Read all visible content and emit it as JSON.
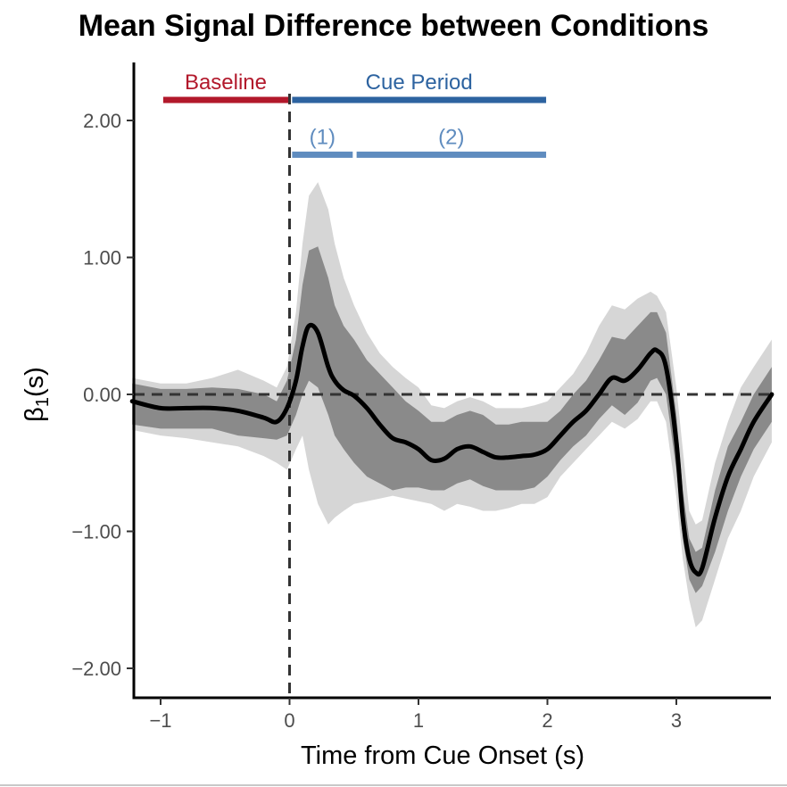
{
  "chart_data": {
    "type": "line",
    "title": "Mean Signal Difference between Conditions",
    "xlabel": "Time from Cue Onset (s)",
    "ylabel_main": "β",
    "ylabel_sub": "1",
    "ylabel_tail": "(s)",
    "xlim": [
      -1.22,
      3.74
    ],
    "ylim": [
      -2.2,
      2.4
    ],
    "x_ticks": [
      -1,
      0,
      1,
      2,
      3
    ],
    "x_tick_labels": [
      "−1",
      "0",
      "1",
      "2",
      "3"
    ],
    "y_ticks": [
      2,
      1,
      0,
      -1,
      -2
    ],
    "y_tick_labels": [
      "2.00",
      "1.00",
      "0.00",
      "−1.00",
      "−2.00"
    ],
    "reference_lines": [
      {
        "axis": "y",
        "value": 0,
        "style": "dashed"
      },
      {
        "axis": "x",
        "value": 0,
        "style": "dashed"
      }
    ],
    "annotations": [
      {
        "label": "Baseline",
        "x_start": -0.98,
        "x_end": -0.01,
        "y": 2.15,
        "label_y": 2.28,
        "color": "#b2182b"
      },
      {
        "label": "Cue Period",
        "x_start": 0.02,
        "x_end": 1.99,
        "y": 2.15,
        "label_y": 2.28,
        "color": "#2d63a0"
      },
      {
        "label": "(1)",
        "x_start": 0.02,
        "x_end": 0.49,
        "y": 1.75,
        "label_y": 1.88,
        "color": "#5f8cbf"
      },
      {
        "label": "(2)",
        "x_start": 0.52,
        "x_end": 1.99,
        "y": 1.75,
        "label_y": 1.88,
        "color": "#5f8cbf"
      }
    ],
    "series": [
      {
        "x": [
          -1.22,
          -1.0,
          -0.8,
          -0.6,
          -0.4,
          -0.2,
          -0.1,
          -0.02,
          0.05,
          0.1,
          0.15,
          0.22,
          0.3,
          0.35,
          0.42,
          0.5,
          0.6,
          0.7,
          0.8,
          0.9,
          1.0,
          1.1,
          1.2,
          1.3,
          1.4,
          1.5,
          1.6,
          1.7,
          1.8,
          1.9,
          2.0,
          2.1,
          2.2,
          2.3,
          2.4,
          2.5,
          2.6,
          2.7,
          2.8,
          2.85,
          2.92,
          3.0,
          3.05,
          3.1,
          3.15,
          3.2,
          3.3,
          3.4,
          3.5,
          3.6,
          3.74
        ],
        "y": [
          -0.05,
          -0.1,
          -0.1,
          -0.1,
          -0.12,
          -0.17,
          -0.2,
          -0.1,
          0.1,
          0.35,
          0.5,
          0.45,
          0.2,
          0.1,
          0.03,
          -0.01,
          -0.1,
          -0.22,
          -0.32,
          -0.35,
          -0.4,
          -0.48,
          -0.47,
          -0.4,
          -0.38,
          -0.42,
          -0.46,
          -0.46,
          -0.45,
          -0.44,
          -0.4,
          -0.3,
          -0.2,
          -0.12,
          0.0,
          0.12,
          0.1,
          0.18,
          0.3,
          0.32,
          0.2,
          -0.35,
          -0.9,
          -1.2,
          -1.3,
          -1.27,
          -0.9,
          -0.6,
          -0.4,
          -0.2,
          0.0
        ],
        "inner_lower": [
          -0.22,
          -0.25,
          -0.25,
          -0.25,
          -0.3,
          -0.32,
          -0.33,
          -0.3,
          -0.15,
          0.0,
          0.1,
          0.05,
          -0.15,
          -0.3,
          -0.4,
          -0.5,
          -0.6,
          -0.65,
          -0.7,
          -0.68,
          -0.68,
          -0.7,
          -0.7,
          -0.65,
          -0.62,
          -0.67,
          -0.7,
          -0.7,
          -0.7,
          -0.68,
          -0.6,
          -0.48,
          -0.38,
          -0.3,
          -0.18,
          -0.08,
          -0.15,
          -0.06,
          0.1,
          0.12,
          0.0,
          -0.55,
          -1.05,
          -1.35,
          -1.45,
          -1.4,
          -1.15,
          -0.85,
          -0.6,
          -0.4,
          -0.2
        ],
        "inner_upper": [
          0.08,
          0.04,
          0.04,
          0.05,
          0.04,
          0.0,
          -0.05,
          0.1,
          0.4,
          0.8,
          1.05,
          1.08,
          0.85,
          0.65,
          0.5,
          0.4,
          0.25,
          0.15,
          0.05,
          -0.05,
          -0.12,
          -0.2,
          -0.2,
          -0.15,
          -0.12,
          -0.15,
          -0.22,
          -0.22,
          -0.2,
          -0.2,
          -0.2,
          -0.12,
          0.0,
          0.1,
          0.25,
          0.42,
          0.4,
          0.5,
          0.6,
          0.6,
          0.45,
          -0.15,
          -0.7,
          -1.05,
          -1.15,
          -1.12,
          -0.7,
          -0.38,
          -0.2,
          0.0,
          0.2
        ],
        "outer_lower": [
          -0.26,
          -0.3,
          -0.32,
          -0.35,
          -0.38,
          -0.45,
          -0.5,
          -0.55,
          -0.4,
          -0.3,
          -0.55,
          -0.8,
          -0.95,
          -0.9,
          -0.85,
          -0.8,
          -0.78,
          -0.76,
          -0.74,
          -0.76,
          -0.78,
          -0.8,
          -0.85,
          -0.8,
          -0.82,
          -0.85,
          -0.85,
          -0.83,
          -0.8,
          -0.8,
          -0.75,
          -0.6,
          -0.5,
          -0.4,
          -0.3,
          -0.2,
          -0.25,
          -0.18,
          -0.05,
          -0.05,
          -0.2,
          -0.75,
          -1.2,
          -1.5,
          -1.7,
          -1.65,
          -1.35,
          -1.05,
          -0.85,
          -0.6,
          -0.35
        ],
        "outer_upper": [
          0.12,
          0.08,
          0.08,
          0.12,
          0.18,
          0.1,
          0.05,
          0.2,
          0.6,
          1.1,
          1.45,
          1.55,
          1.35,
          1.1,
          0.85,
          0.65,
          0.45,
          0.3,
          0.2,
          0.12,
          0.05,
          -0.08,
          -0.1,
          -0.05,
          -0.02,
          -0.05,
          -0.1,
          -0.1,
          -0.1,
          -0.08,
          -0.05,
          0.05,
          0.15,
          0.3,
          0.5,
          0.65,
          0.62,
          0.7,
          0.75,
          0.72,
          0.6,
          0.05,
          -0.4,
          -0.85,
          -0.95,
          -0.92,
          -0.5,
          -0.2,
          0.05,
          0.2,
          0.4
        ]
      }
    ],
    "colors": {
      "line": "#000000",
      "inner_band": "#8a8a8a",
      "outer_band": "#d6d6d6",
      "reference": "#333333",
      "axis": "#000000"
    }
  }
}
